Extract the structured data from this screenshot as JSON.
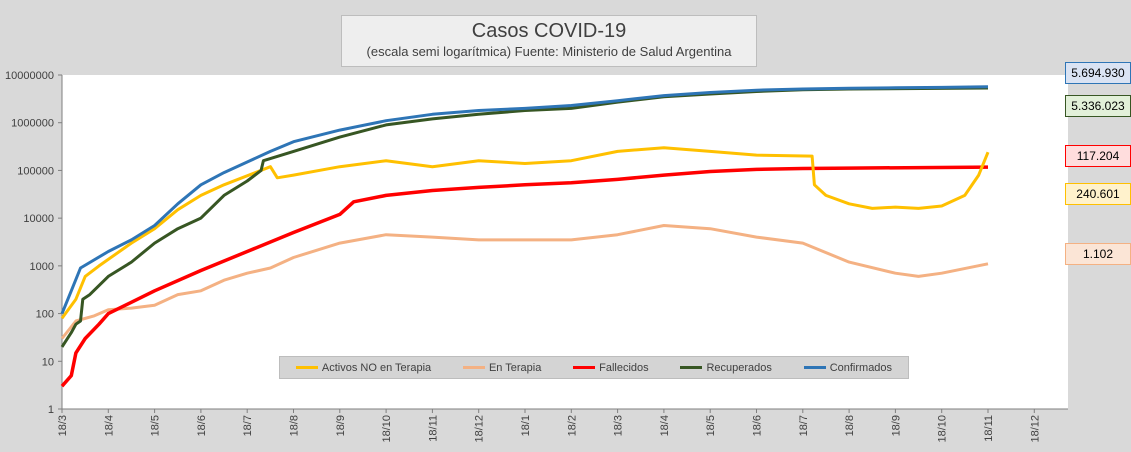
{
  "chart_data": {
    "type": "line",
    "title": "Casos COVID-19",
    "subtitle": "(escala semi logarítmica) Fuente: Ministerio de Salud Argentina",
    "yscale": "log",
    "ylim": [
      1,
      10000000
    ],
    "y_ticks": [
      "10000000",
      "1000000",
      "100000",
      "10000",
      "1000",
      "100",
      "10",
      "1"
    ],
    "x_ticks": [
      "18/3",
      "18/4",
      "18/5",
      "18/6",
      "18/7",
      "18/8",
      "18/9",
      "18/10",
      "18/11",
      "18/12",
      "18/1",
      "18/2",
      "18/3",
      "18/4",
      "18/5",
      "18/6",
      "18/7",
      "18/8",
      "18/9",
      "18/10",
      "18/11",
      "18/12"
    ],
    "grid": false,
    "legend_position": "bottom-center",
    "series": [
      {
        "name": "Activos NO en Terapia",
        "color": "#ffc000",
        "points": [
          [
            0,
            80
          ],
          [
            0.3,
            200
          ],
          [
            0.5,
            600
          ],
          [
            0.8,
            1000
          ],
          [
            1.5,
            3000
          ],
          [
            2,
            6000
          ],
          [
            2.5,
            15000
          ],
          [
            3,
            30000
          ],
          [
            3.5,
            50000
          ],
          [
            4.5,
            120000
          ],
          [
            4.65,
            70000
          ],
          [
            5,
            80000
          ],
          [
            6,
            120000
          ],
          [
            7,
            160000
          ],
          [
            8,
            120000
          ],
          [
            9,
            160000
          ],
          [
            10,
            140000
          ],
          [
            11,
            160000
          ],
          [
            12,
            250000
          ],
          [
            13,
            300000
          ],
          [
            14,
            250000
          ],
          [
            15,
            210000
          ],
          [
            16.2,
            200000
          ],
          [
            16.25,
            50000
          ],
          [
            16.5,
            30000
          ],
          [
            17,
            20000
          ],
          [
            17.5,
            16000
          ],
          [
            18,
            17000
          ],
          [
            18.5,
            16000
          ],
          [
            19,
            18000
          ],
          [
            19.5,
            30000
          ],
          [
            19.8,
            80000
          ],
          [
            20,
            240601
          ]
        ],
        "end_label": "240.601"
      },
      {
        "name": "En Terapia",
        "color": "#f4b183",
        "points": [
          [
            0,
            30
          ],
          [
            0.3,
            70
          ],
          [
            0.7,
            90
          ],
          [
            1,
            120
          ],
          [
            1.5,
            130
          ],
          [
            2,
            150
          ],
          [
            2.5,
            250
          ],
          [
            3,
            300
          ],
          [
            3.5,
            500
          ],
          [
            4,
            700
          ],
          [
            4.5,
            900
          ],
          [
            5,
            1500
          ],
          [
            6,
            3000
          ],
          [
            7,
            4500
          ],
          [
            8,
            4000
          ],
          [
            9,
            3500
          ],
          [
            10,
            3500
          ],
          [
            11,
            3500
          ],
          [
            12,
            4500
          ],
          [
            13,
            7000
          ],
          [
            14,
            6000
          ],
          [
            15,
            4000
          ],
          [
            16,
            3000
          ],
          [
            17,
            1200
          ],
          [
            18,
            700
          ],
          [
            18.5,
            600
          ],
          [
            19,
            700
          ],
          [
            20,
            1102
          ]
        ],
        "end_label": "1.102"
      },
      {
        "name": "Fallecidos",
        "color": "#ff0000",
        "points": [
          [
            0,
            3
          ],
          [
            0.2,
            5
          ],
          [
            0.3,
            15
          ],
          [
            0.5,
            30
          ],
          [
            0.8,
            60
          ],
          [
            1,
            100
          ],
          [
            2,
            300
          ],
          [
            3,
            800
          ],
          [
            4,
            2000
          ],
          [
            5,
            5000
          ],
          [
            6,
            12000
          ],
          [
            6.3,
            22000
          ],
          [
            7,
            30000
          ],
          [
            8,
            38000
          ],
          [
            9,
            44000
          ],
          [
            10,
            50000
          ],
          [
            11,
            55000
          ],
          [
            12,
            65000
          ],
          [
            13,
            80000
          ],
          [
            14,
            95000
          ],
          [
            15,
            105000
          ],
          [
            16,
            110000
          ],
          [
            17,
            112000
          ],
          [
            20,
            117204
          ]
        ],
        "end_label": "117.204"
      },
      {
        "name": "Recuperados",
        "color": "#375623",
        "points": [
          [
            0,
            20
          ],
          [
            0.2,
            40
          ],
          [
            0.3,
            60
          ],
          [
            0.4,
            70
          ],
          [
            0.45,
            200
          ],
          [
            0.6,
            250
          ],
          [
            1,
            600
          ],
          [
            1.5,
            1200
          ],
          [
            2,
            3000
          ],
          [
            2.5,
            6000
          ],
          [
            3,
            10000
          ],
          [
            3.5,
            30000
          ],
          [
            4,
            60000
          ],
          [
            4.3,
            100000
          ],
          [
            4.35,
            160000
          ],
          [
            5,
            250000
          ],
          [
            6,
            500000
          ],
          [
            7,
            900000
          ],
          [
            8,
            1200000
          ],
          [
            9,
            1500000
          ],
          [
            10,
            1800000
          ],
          [
            11,
            2000000
          ],
          [
            12,
            2700000
          ],
          [
            13,
            3500000
          ],
          [
            14,
            4000000
          ],
          [
            15,
            4500000
          ],
          [
            16,
            4900000
          ],
          [
            17,
            5100000
          ],
          [
            20,
            5336023
          ]
        ],
        "end_label": "5.336.023"
      },
      {
        "name": "Confirmados",
        "color": "#2e75b6",
        "points": [
          [
            0,
            100
          ],
          [
            0.2,
            300
          ],
          [
            0.4,
            900
          ],
          [
            1,
            2000
          ],
          [
            1.5,
            3500
          ],
          [
            2,
            7000
          ],
          [
            2.5,
            20000
          ],
          [
            3,
            50000
          ],
          [
            3.5,
            90000
          ],
          [
            4,
            150000
          ],
          [
            4.5,
            250000
          ],
          [
            5,
            400000
          ],
          [
            6,
            700000
          ],
          [
            7,
            1100000
          ],
          [
            8,
            1500000
          ],
          [
            9,
            1800000
          ],
          [
            10,
            2000000
          ],
          [
            11,
            2300000
          ],
          [
            12,
            2900000
          ],
          [
            13,
            3700000
          ],
          [
            14,
            4300000
          ],
          [
            15,
            4800000
          ],
          [
            16,
            5100000
          ],
          [
            17,
            5300000
          ],
          [
            18,
            5400000
          ],
          [
            19,
            5500000
          ],
          [
            20,
            5694930
          ]
        ],
        "end_label": "5.694.930"
      }
    ],
    "callouts": [
      {
        "series": "Confirmados",
        "text": "5.694.930",
        "bg": "#dae3f3"
      },
      {
        "series": "Recuperados",
        "text": "5.336.023",
        "bg": "#e2f0d9"
      },
      {
        "series": "Fallecidos",
        "text": "117.204",
        "bg": "#ffdddd"
      },
      {
        "series": "Activos NO en Terapia",
        "text": "240.601",
        "bg": "#fff2cc"
      },
      {
        "series": "En Terapia",
        "text": "1.102",
        "bg": "#fbe5d6"
      }
    ]
  }
}
